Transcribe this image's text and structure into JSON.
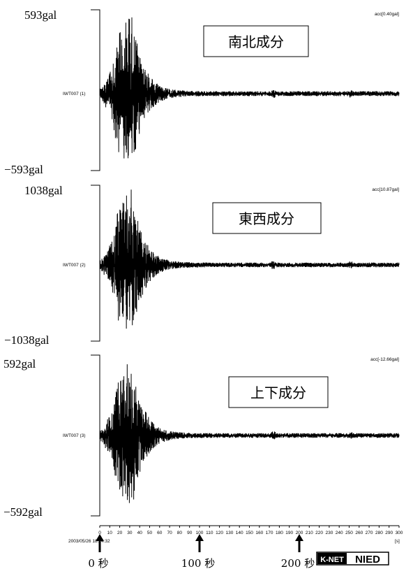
{
  "chart_data": {
    "type": "line",
    "x_range": [
      0,
      300
    ],
    "x_ticks": [
      "0",
      "10",
      "20",
      "30",
      "40",
      "50",
      "60",
      "70",
      "80",
      "90",
      "100",
      "110",
      "120",
      "130",
      "140",
      "150",
      "160",
      "170",
      "180",
      "190",
      "200",
      "210",
      "220",
      "230",
      "240",
      "250",
      "260",
      "270",
      "280",
      "290",
      "300"
    ],
    "x_unit": "[s]",
    "start_time": "2003/05/26 18:24:32",
    "markers": [
      {
        "x": 0,
        "label": "0 秒"
      },
      {
        "x": 100,
        "label": "100 秒"
      },
      {
        "x": 200,
        "label": "200 秒"
      }
    ],
    "panels": [
      {
        "component": "南北成分",
        "station": "IWT007 (1)",
        "offset": "acc[0.40gal]",
        "ymax_label": "593gal",
        "ymin_label": "−593gal",
        "ylim": [
          -593,
          593
        ]
      },
      {
        "component": "東西成分",
        "station": "IWT007 (2)",
        "offset": "acc[10.87gal]",
        "ymax_label": "1038gal",
        "ymin_label": "−1038gal",
        "ylim": [
          -1038,
          1038
        ]
      },
      {
        "component": "上下成分",
        "station": "IWT007 (3)",
        "offset": "acc[-12.66gal]",
        "ymax_label": "592gal",
        "ymin_label": "−592gal",
        "ylim": [
          -592,
          592
        ]
      }
    ]
  },
  "logo": {
    "knet": "K-NET",
    "nied": "NIED"
  }
}
